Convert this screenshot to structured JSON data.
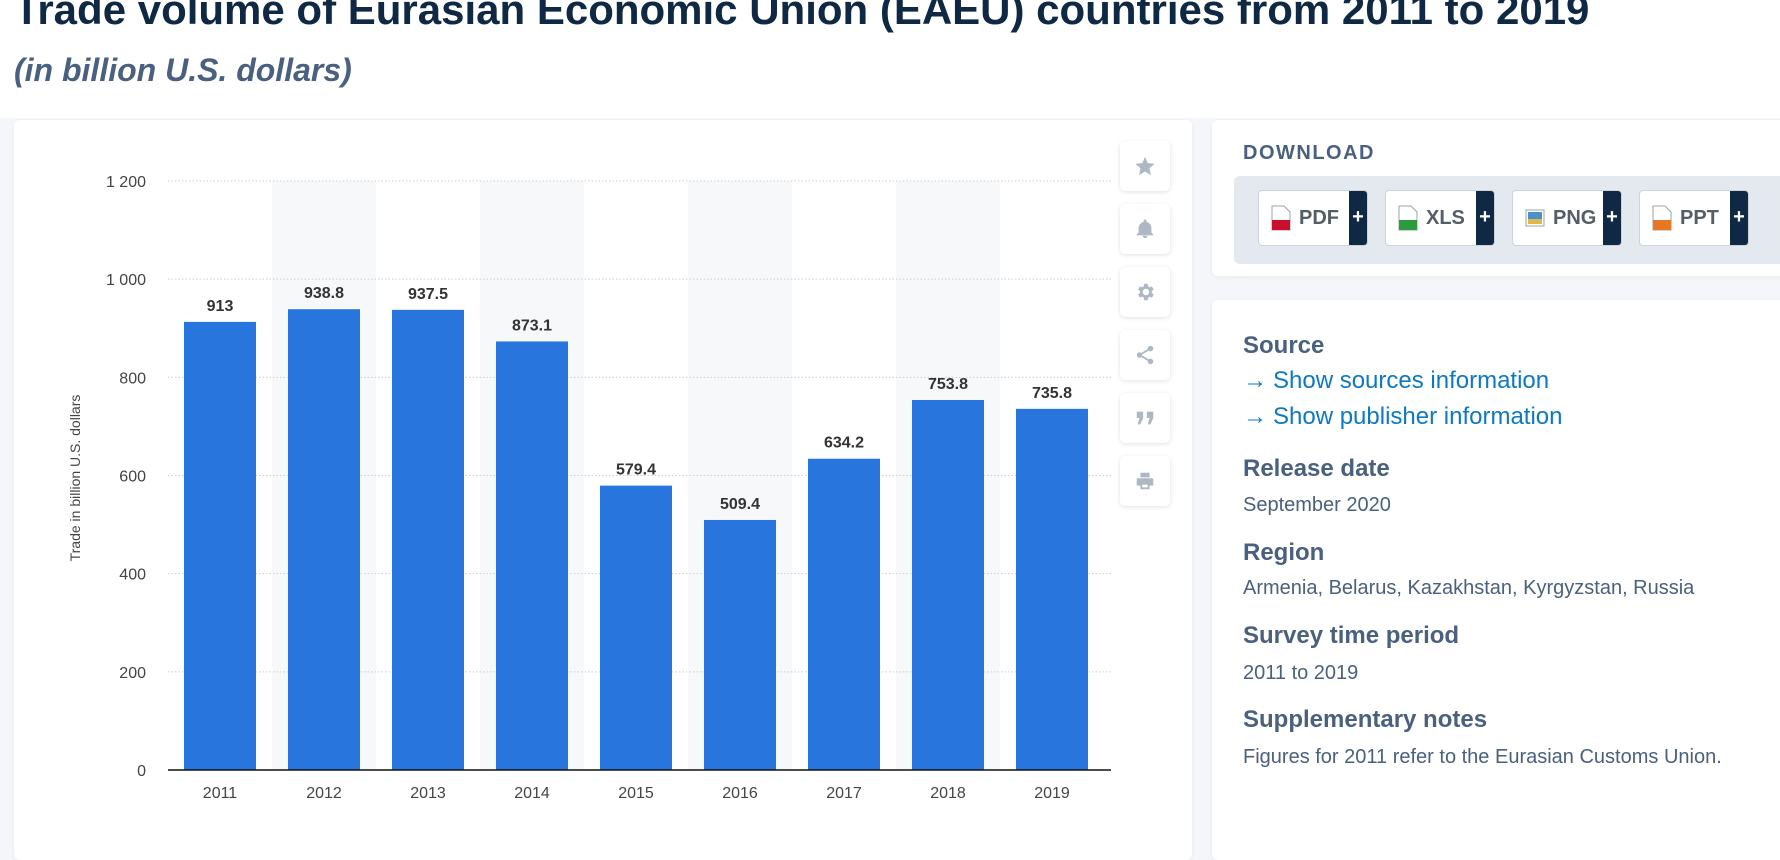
{
  "page": {
    "title": "Trade volume of Eurasian Economic Union (EAEU) countries from 2011 to 2019",
    "subtitle": "(in billion U.S. dollars)"
  },
  "toolbar": {
    "icons": [
      "star-icon",
      "bell-icon",
      "gear-icon",
      "share-icon",
      "quote-icon",
      "print-icon"
    ]
  },
  "download": {
    "title": "DOWNLOAD",
    "buttons": [
      {
        "label": "PDF",
        "plus": "+",
        "icon": "pdf-file-icon",
        "color": "#c8102e"
      },
      {
        "label": "XLS",
        "plus": "+",
        "icon": "xls-file-icon",
        "color": "#2e9a3e"
      },
      {
        "label": "PNG",
        "plus": "+",
        "icon": "png-file-icon",
        "color": "#4b8fd1"
      },
      {
        "label": "PPT",
        "plus": "+",
        "icon": "ppt-file-icon",
        "color": "#e87722"
      }
    ]
  },
  "info": {
    "source_heading": "Source",
    "source_link": "Show sources information",
    "publisher_link": "Show publisher information",
    "release_heading": "Release date",
    "release_value": "September 2020",
    "region_heading": "Region",
    "region_value": "Armenia, Belarus, Kazakhstan, Kyrgyzstan, Russia",
    "survey_heading": "Survey time period",
    "survey_value": "2011 to 2019",
    "notes_heading": "Supplementary notes",
    "notes_value": "Figures for 2011 refer to the Eurasian Customs Union."
  },
  "colors": {
    "bar": "#2876dd",
    "link": "#0b79c6",
    "heading": "#4a6080",
    "title": "#0f2843"
  },
  "chart_data": {
    "type": "bar",
    "categories": [
      "2011",
      "2012",
      "2013",
      "2014",
      "2015",
      "2016",
      "2017",
      "2018",
      "2019"
    ],
    "values": [
      913,
      938.8,
      937.5,
      873.1,
      579.4,
      509.4,
      634.2,
      753.8,
      735.8
    ],
    "data_labels": [
      "913",
      "938.8",
      "937.5",
      "873.1",
      "579.4",
      "509.4",
      "634.2",
      "753.8",
      "735.8"
    ],
    "ylabel": "Trade in billion U.S. dollars",
    "ylim": [
      0,
      1200
    ],
    "yticks": [
      0,
      200,
      400,
      600,
      800,
      1000,
      1200
    ],
    "ytick_labels": [
      "0",
      "200",
      "400",
      "600",
      "800",
      "1 000",
      "1 200"
    ],
    "grid": true,
    "legend": "none"
  }
}
